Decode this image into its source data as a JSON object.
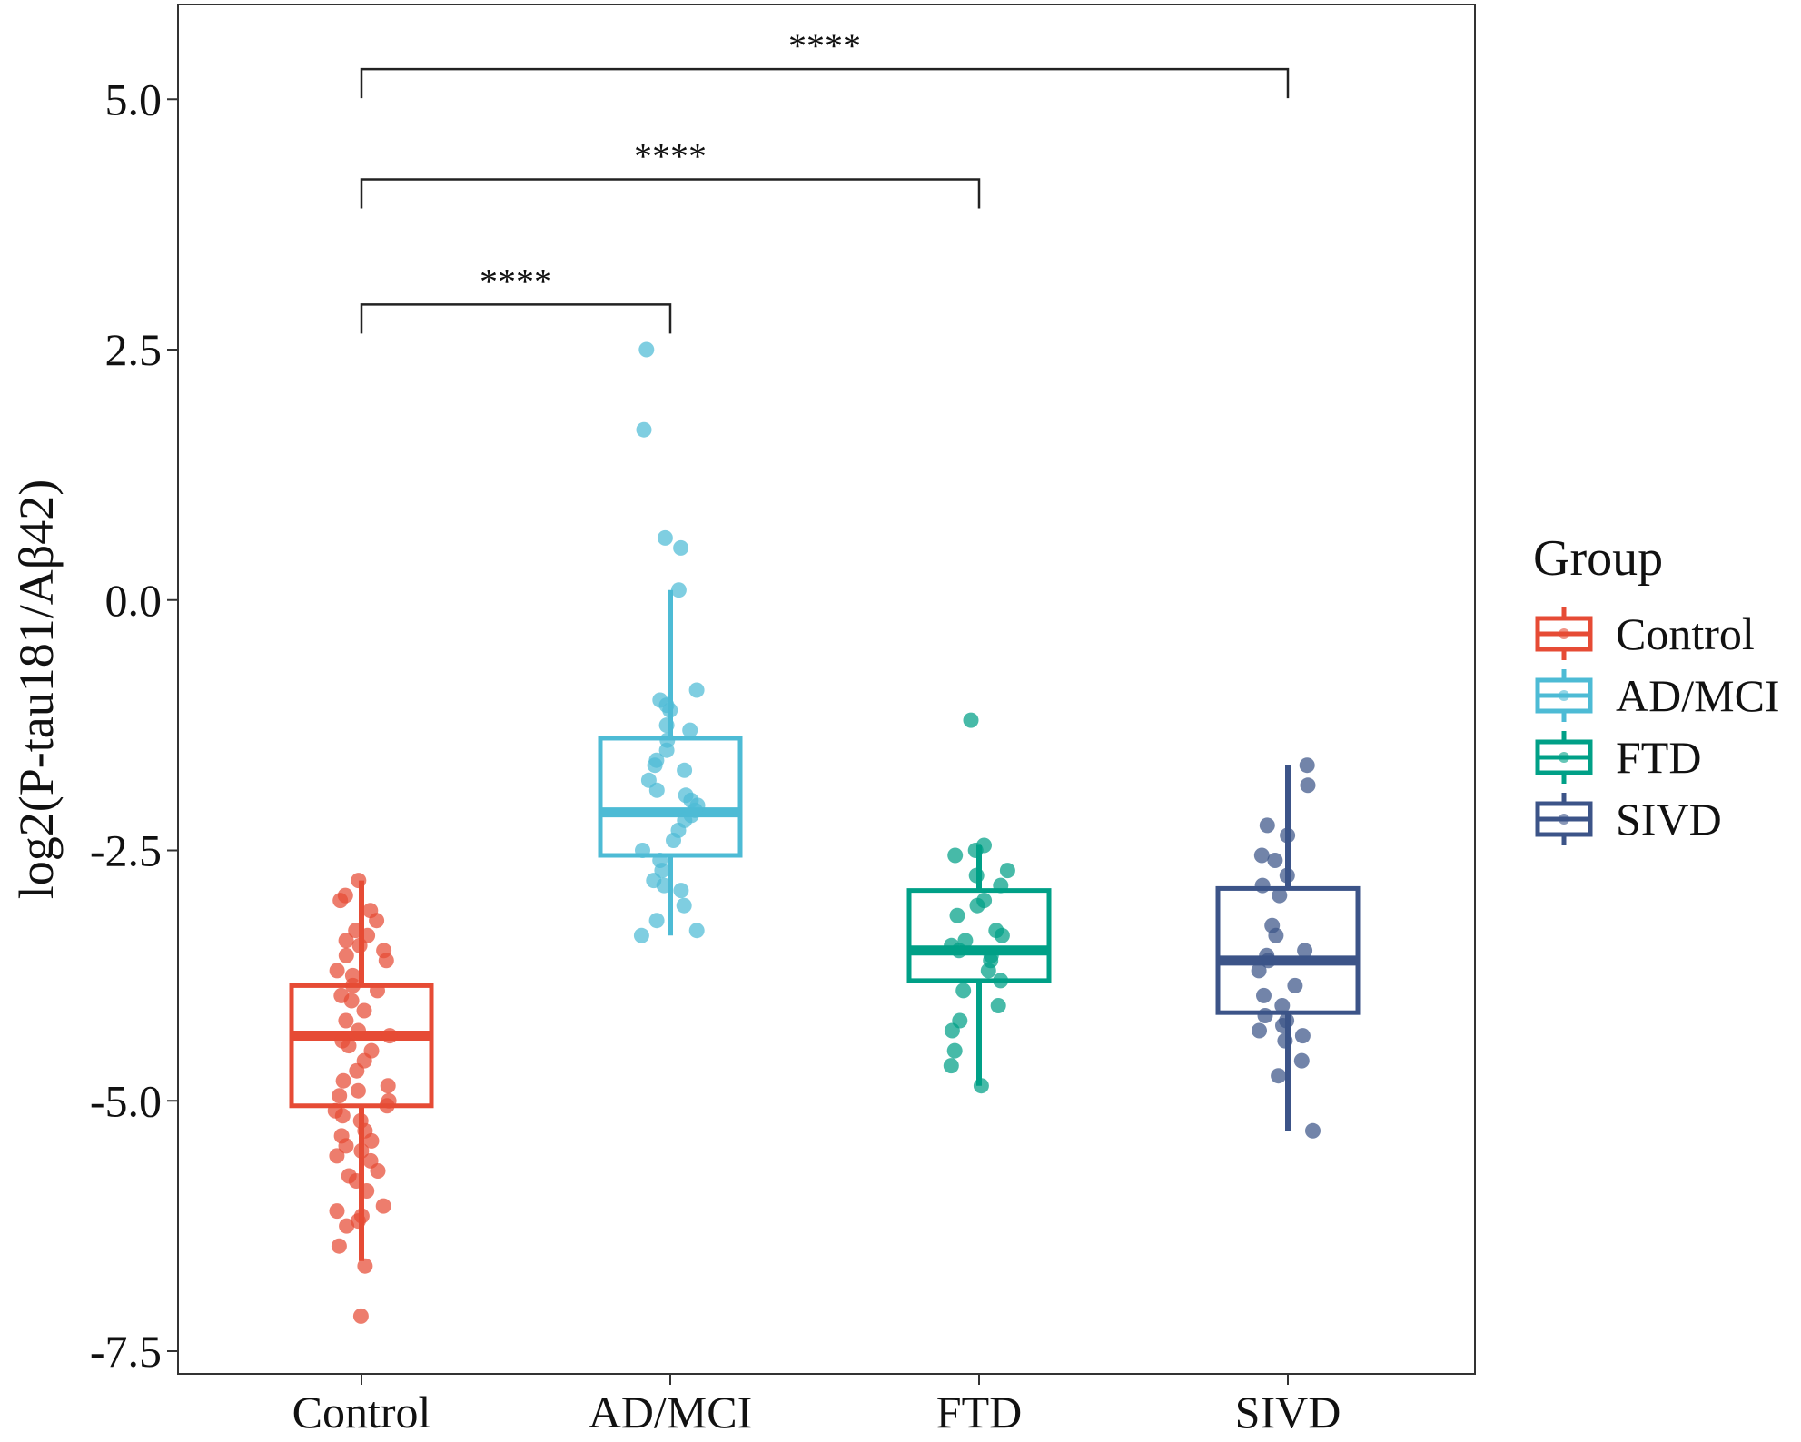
{
  "chart_data": {
    "type": "box",
    "title": "",
    "xlabel": "",
    "ylabel": "log2(P-tau181/Aβ42)",
    "ylim": [
      -8.0,
      5.9
    ],
    "yticks": [
      5.0,
      2.5,
      0.0,
      -2.5,
      -5.0,
      -7.5
    ],
    "ytick_labels": [
      "5.0",
      "2.5",
      "0.0",
      "-2.5",
      "-5.0",
      "-7.5"
    ],
    "categories": [
      "Control",
      "AD/MCI",
      "FTD",
      "SIVD"
    ],
    "legend": {
      "title": "Group",
      "position": "right",
      "entries": [
        "Control",
        "AD/MCI",
        "FTD",
        "SIVD"
      ]
    },
    "colors": {
      "Control": "#e64b35",
      "AD/MCI": "#4dbbd5",
      "FTD": "#00a087",
      "SIVD": "#3c5488"
    },
    "series": [
      {
        "name": "Control",
        "box": {
          "q1": -5.05,
          "median": -4.35,
          "q3": -3.85,
          "whisker_low": -6.6,
          "whisker_high": -2.8
        },
        "points": [
          -7.15,
          -6.65,
          -6.45,
          -6.25,
          -6.2,
          -6.15,
          -6.1,
          -6.05,
          -5.9,
          -5.8,
          -5.75,
          -5.7,
          -5.6,
          -5.55,
          -5.5,
          -5.45,
          -5.4,
          -5.35,
          -5.3,
          -5.2,
          -5.15,
          -5.1,
          -5.05,
          -5.0,
          -4.95,
          -4.9,
          -4.85,
          -4.8,
          -4.7,
          -4.6,
          -4.5,
          -4.45,
          -4.4,
          -4.35,
          -4.3,
          -4.2,
          -4.1,
          -4.0,
          -3.95,
          -3.9,
          -3.85,
          -3.75,
          -3.7,
          -3.6,
          -3.55,
          -3.5,
          -3.45,
          -3.4,
          -3.35,
          -3.3,
          -3.2,
          -3.1,
          -3.0,
          -2.95,
          -2.8
        ]
      },
      {
        "name": "AD/MCI",
        "box": {
          "q1": -2.55,
          "median": -2.12,
          "q3": -1.38,
          "whisker_low": -3.35,
          "whisker_high": 0.1
        },
        "points": [
          2.5,
          1.7,
          0.62,
          0.52,
          0.1,
          -0.9,
          -1.0,
          -1.05,
          -1.1,
          -1.25,
          -1.3,
          -1.4,
          -1.5,
          -1.6,
          -1.65,
          -1.7,
          -1.8,
          -1.9,
          -1.95,
          -2.0,
          -2.05,
          -2.1,
          -2.15,
          -2.2,
          -2.3,
          -2.4,
          -2.5,
          -2.6,
          -2.7,
          -2.8,
          -2.85,
          -2.9,
          -3.05,
          -3.2,
          -3.3,
          -3.35
        ]
      },
      {
        "name": "FTD",
        "box": {
          "q1": -3.8,
          "median": -3.5,
          "q3": -2.9,
          "whisker_low": -4.85,
          "whisker_high": -2.45
        },
        "points": [
          -1.2,
          -2.45,
          -2.5,
          -2.55,
          -2.7,
          -2.75,
          -2.85,
          -3.0,
          -3.05,
          -3.15,
          -3.3,
          -3.35,
          -3.4,
          -3.45,
          -3.5,
          -3.55,
          -3.6,
          -3.7,
          -3.8,
          -3.9,
          -4.05,
          -4.2,
          -4.3,
          -4.5,
          -4.65,
          -4.85
        ]
      },
      {
        "name": "SIVD",
        "box": {
          "q1": -4.12,
          "median": -3.6,
          "q3": -2.88,
          "whisker_low": -5.3,
          "whisker_high": -1.65
        },
        "points": [
          -1.65,
          -1.85,
          -2.25,
          -2.35,
          -2.55,
          -2.6,
          -2.75,
          -2.85,
          -2.95,
          -3.25,
          -3.35,
          -3.5,
          -3.55,
          -3.6,
          -3.7,
          -3.85,
          -3.95,
          -4.05,
          -4.15,
          -4.2,
          -4.25,
          -4.3,
          -4.35,
          -4.4,
          -4.6,
          -4.75,
          -5.3
        ]
      }
    ],
    "comparisons": [
      {
        "from": "Control",
        "to": "AD/MCI",
        "y": 2.95,
        "label": "****"
      },
      {
        "from": "Control",
        "to": "FTD",
        "y": 4.2,
        "label": "****"
      },
      {
        "from": "Control",
        "to": "SIVD",
        "y": 5.3,
        "label": "****"
      }
    ]
  }
}
